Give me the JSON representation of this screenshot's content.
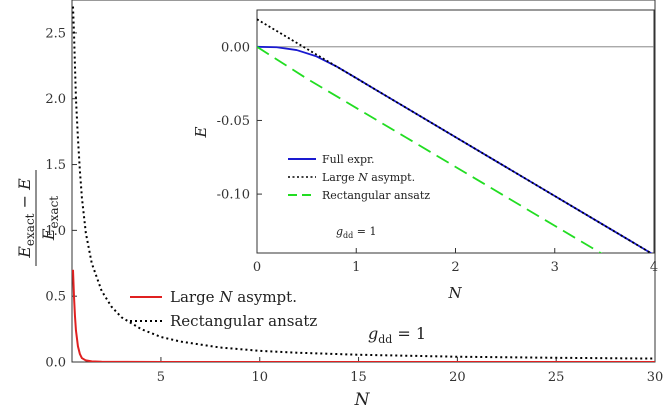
{
  "chart_data": [
    {
      "type": "line",
      "xlabel": "N",
      "ylabel": "(E_exact − E)/E_exact",
      "xlim": [
        0.5,
        30
      ],
      "ylim": [
        0,
        2.75
      ],
      "xticks": [
        "5",
        "10",
        "15",
        "20",
        "25",
        "30"
      ],
      "yticks": [
        "0.0",
        "0.5",
        "1.0",
        "1.5",
        "2.0",
        "2.5"
      ],
      "xtick_values": [
        5,
        10,
        15,
        20,
        25,
        30
      ],
      "ytick_values": [
        0,
        0.5,
        1.0,
        1.5,
        2.0,
        2.5
      ],
      "annotation": "g_dd = 1",
      "legend_position": "lower-left",
      "series": [
        {
          "name": "Large N asympt.",
          "color": "#e02020",
          "style": "solid",
          "x": [
            0.55,
            0.6,
            0.65,
            0.7,
            0.8,
            0.9,
            1.0,
            1.2,
            1.5,
            2.0,
            3.0,
            5.0,
            10.0,
            20.0,
            30.0
          ],
          "y": [
            0.7,
            0.5,
            0.35,
            0.24,
            0.12,
            0.06,
            0.03,
            0.012,
            0.005,
            0.002,
            0.0008,
            0.0003,
            0.0001,
            5e-05,
            3e-05
          ]
        },
        {
          "name": "Rectangular ansatz",
          "color": "#000000",
          "style": "dotted",
          "x": [
            0.55,
            0.6,
            0.7,
            0.8,
            0.9,
            1.0,
            1.2,
            1.5,
            2.0,
            2.5,
            3.0,
            4.0,
            5.0,
            6.0,
            8.0,
            10.0,
            12.0,
            15.0,
            20.0,
            25.0,
            30.0
          ],
          "y": [
            2.7,
            2.5,
            2.0,
            1.7,
            1.45,
            1.25,
            0.98,
            0.75,
            0.54,
            0.42,
            0.34,
            0.25,
            0.19,
            0.155,
            0.11,
            0.085,
            0.07,
            0.055,
            0.04,
            0.032,
            0.026
          ]
        }
      ]
    },
    {
      "type": "line",
      "xlabel": "N",
      "ylabel": "E",
      "xlim": [
        0,
        4
      ],
      "ylim": [
        -0.14,
        0.025
      ],
      "xticks": [
        "0",
        "1",
        "2",
        "3",
        "4"
      ],
      "yticks": [
        "0.00",
        "-0.05",
        "-0.10"
      ],
      "xtick_values": [
        0,
        1,
        2,
        3,
        4
      ],
      "ytick_values": [
        0,
        -0.05,
        -0.1
      ],
      "annotation": "g_dd = 1",
      "legend_position": "lower-left",
      "series": [
        {
          "name": "Full expr.",
          "color": "#1a1ad0",
          "style": "solid",
          "x": [
            0,
            0.2,
            0.4,
            0.6,
            0.8,
            1.0,
            1.2,
            1.5,
            2.0,
            2.5,
            3.0,
            3.5,
            4.0
          ],
          "y": [
            0,
            -0.0003,
            -0.0022,
            -0.0065,
            -0.0133,
            -0.0212,
            -0.0293,
            -0.0413,
            -0.0613,
            -0.0813,
            -0.1013,
            -0.1213,
            -0.1413
          ]
        },
        {
          "name": "Large N asympt.",
          "color": "#000000",
          "style": "dotted",
          "x": [
            0,
            0.5,
            1.0,
            1.5,
            2.0,
            2.5,
            3.0,
            3.5,
            4.0
          ],
          "y": [
            0.0187,
            -0.0013,
            -0.0213,
            -0.0413,
            -0.0613,
            -0.0813,
            -0.1013,
            -0.1213,
            -0.1413
          ]
        },
        {
          "name": "Rectangular ansatz",
          "color": "#22dd22",
          "style": "dashed",
          "x": [
            0,
            0.5,
            1.0,
            1.5,
            2.0,
            2.5,
            3.0,
            3.5,
            3.6
          ],
          "y": [
            0,
            -0.0215,
            -0.0415,
            -0.0615,
            -0.0815,
            -0.1015,
            -0.1215,
            -0.1415,
            -0.1455
          ]
        }
      ]
    }
  ],
  "labels": {
    "main_ylabel_num_left": "E",
    "main_ylabel_num_left_sub": "exact",
    "main_ylabel_num_minus": " − ",
    "main_ylabel_num_right": "E",
    "main_ylabel_den": "E",
    "main_ylabel_den_sub": "exact",
    "main_xlabel": "N",
    "inset_xlabel": "N",
    "inset_ylabel": "E",
    "main_legend_1_pre": "Large ",
    "main_legend_1_var": "N",
    "main_legend_1_post": " asympt.",
    "main_legend_2": "Rectangular ansatz",
    "inset_legend_1": "Full expr.",
    "inset_legend_2_pre": "Large ",
    "inset_legend_2_var": "N",
    "inset_legend_2_post": " asympt.",
    "inset_legend_3": "Rectangular ansatz",
    "gdd_var": "g",
    "gdd_sub": "dd",
    "gdd_eq": " = 1"
  }
}
